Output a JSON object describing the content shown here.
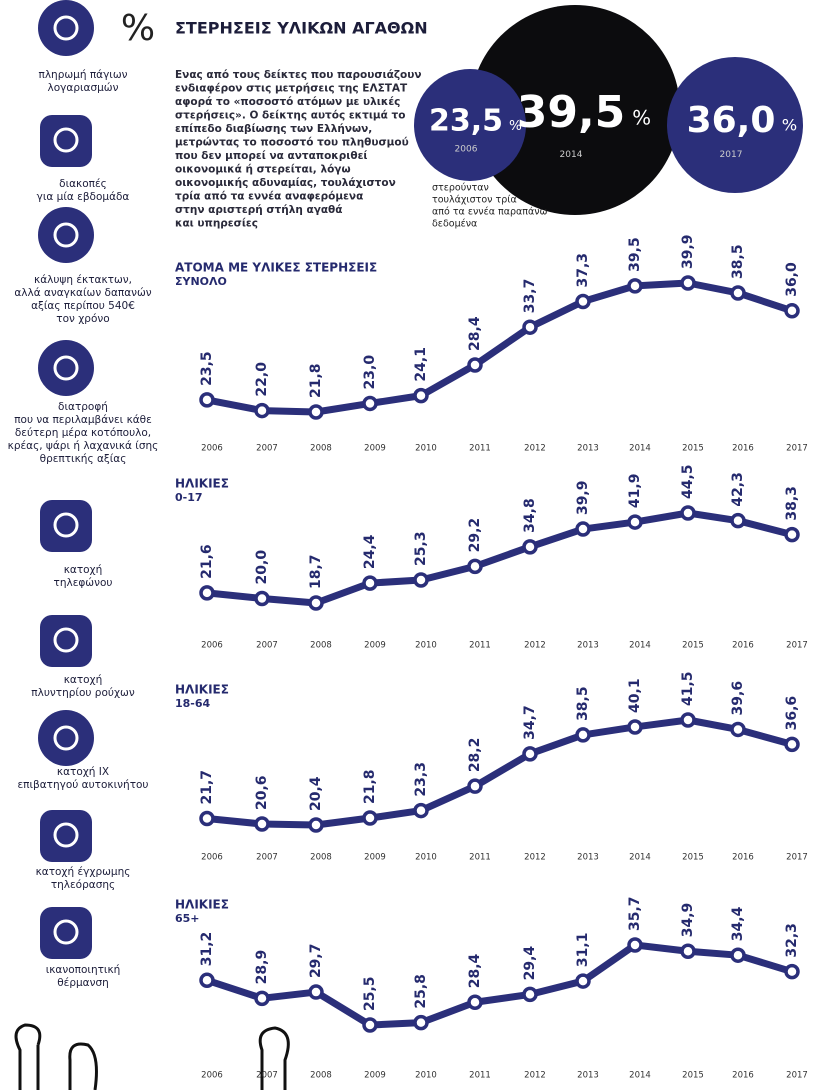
{
  "header": {
    "symbol": "%",
    "title": "ΣΤΕΡΗΣΕΙΣ ΥΛΙΚΩΝ ΑΓΑΘΩΝ",
    "paragraph": [
      "Ενας από τους δείκτες που παρουσιάζουν",
      "ενδιαφέρον στις μετρήσεις της ΕΛΣΤΑΤ",
      "αφορά το «ποσοστό ατόμων με υλικές",
      "στερήσεις». Ο δείκτης αυτός εκτιμά το",
      "επίπεδο διαβίωσης των Ελλήνων,",
      "μετρώντας το ποσοστό του πληθυσμού",
      "που δεν μπορεί να ανταποκριθεί",
      "οικονομικά ή στερείται, λόγω",
      "οικονομικής αδυναμίας, τουλάχιστον",
      "τρία από τα εννέα αναφερόμενα",
      "στην αριστερή στήλη αγαθά",
      "και υπηρεσίες"
    ],
    "bubbles": [
      {
        "label": "23,5",
        "unit": "%",
        "year": "2006"
      },
      {
        "label": "39,5",
        "unit": "%",
        "year": "2014"
      },
      {
        "label": "36,0",
        "unit": "%",
        "year": "2017"
      }
    ],
    "caption": [
      "στερούνταν",
      "τουλάχιστον τρία",
      "από τα εννέα παραπάνω",
      "δεδομένα"
    ]
  },
  "sidebar": [
    {
      "lines": [
        "πληρωμή πάγιων",
        "λογαριασμών"
      ]
    },
    {
      "lines": [
        "διακοπές",
        "για μία εβδομάδα"
      ]
    },
    {
      "lines": [
        "κάλυψη έκτακτων,",
        "αλλά αναγκαίων δαπανών",
        "αξίας περίπου 540€",
        "τον χρόνο"
      ]
    },
    {
      "lines": [
        "διατροφή",
        "που να περιλαμβάνει κάθε",
        "δεύτερη μέρα κοτόπουλο,",
        "κρέας, ψάρι ή λαχανικά ίσης",
        "θρεπτικής αξίας"
      ]
    },
    {
      "lines": [
        "κατοχή",
        "τηλεφώνου"
      ]
    },
    {
      "lines": [
        "κατοχή",
        "πλυντηρίου ρούχων"
      ]
    },
    {
      "lines": [
        "κατοχή ΙΧ",
        "επιβατηγού αυτοκινήτου"
      ]
    },
    {
      "lines": [
        "κατοχή έγχρωμης",
        "τηλεόρασης"
      ]
    },
    {
      "lines": [
        "ικανοποιητική",
        "θέρμανση"
      ]
    }
  ],
  "chart_data": [
    {
      "type": "line",
      "title": "ΑΤΟΜΑ ΜΕ ΥΛΙΚΕΣ ΣΤΕΡΗΣΕΙΣ",
      "subtitle": "ΣΥΝΟΛΟ",
      "color": "#2b2f7a",
      "categories": [
        "2006",
        "2007",
        "2008",
        "2009",
        "2010",
        "2011",
        "2012",
        "2013",
        "2014",
        "2015",
        "2016",
        "2017"
      ],
      "values": [
        23.5,
        22.0,
        21.8,
        23.0,
        24.1,
        28.4,
        33.7,
        37.3,
        39.5,
        39.9,
        38.5,
        36.0
      ],
      "value_labels": [
        "23,5",
        "22,0",
        "21,8",
        "23,0",
        "24,1",
        "28,4",
        "33,7",
        "37,3",
        "39,5",
        "39,9",
        "38,5",
        "36,0"
      ]
    },
    {
      "type": "line",
      "title": "ΗΛΙΚΙΕΣ",
      "subtitle": "0-17",
      "color": "#2b2f7a",
      "categories": [
        "2006",
        "2007",
        "2008",
        "2009",
        "2010",
        "2011",
        "2012",
        "2013",
        "2014",
        "2015",
        "2016",
        "2017"
      ],
      "values": [
        21.6,
        20.0,
        18.7,
        24.4,
        25.3,
        29.2,
        34.8,
        39.9,
        41.9,
        44.5,
        42.3,
        38.3
      ],
      "value_labels": [
        "21,6",
        "20,0",
        "18,7",
        "24,4",
        "25,3",
        "29,2",
        "34,8",
        "39,9",
        "41,9",
        "44,5",
        "42,3",
        "38,3"
      ]
    },
    {
      "type": "line",
      "title": "ΗΛΙΚΙΕΣ",
      "subtitle": "18-64",
      "color": "#2b2f7a",
      "categories": [
        "2006",
        "2007",
        "2008",
        "2009",
        "2010",
        "2011",
        "2012",
        "2013",
        "2014",
        "2015",
        "2016",
        "2017"
      ],
      "values": [
        21.7,
        20.6,
        20.4,
        21.8,
        23.3,
        28.2,
        34.7,
        38.5,
        40.1,
        41.5,
        39.6,
        36.6
      ],
      "value_labels": [
        "21,7",
        "20,6",
        "20,4",
        "21,8",
        "23,3",
        "28,2",
        "34,7",
        "38,5",
        "40,1",
        "41,5",
        "39,6",
        "36,6"
      ]
    },
    {
      "type": "line",
      "title": "ΗΛΙΚΙΕΣ",
      "subtitle": "65+",
      "color": "#2b2f7a",
      "categories": [
        "2006",
        "2007",
        "2008",
        "2009",
        "2010",
        "2011",
        "2012",
        "2013",
        "2014",
        "2015",
        "2016",
        "2017"
      ],
      "values": [
        31.2,
        28.9,
        29.7,
        25.5,
        25.8,
        28.4,
        29.4,
        31.1,
        35.7,
        34.9,
        34.4,
        32.3
      ],
      "value_labels": [
        "31,2",
        "28,9",
        "29,7",
        "25,5",
        "25,8",
        "28,4",
        "29,4",
        "31,1",
        "35,7",
        "34,9",
        "34,4",
        "32,3"
      ]
    }
  ]
}
